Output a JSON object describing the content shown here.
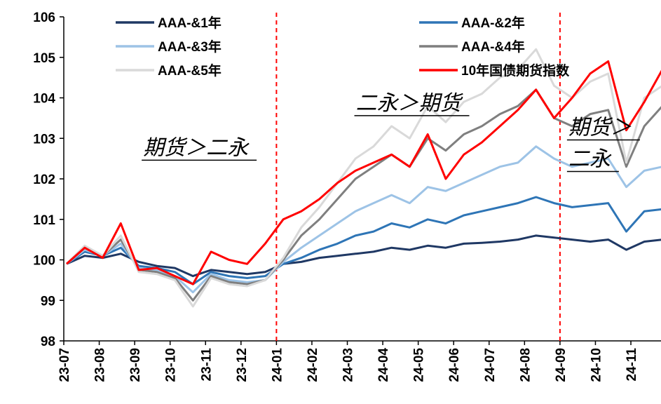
{
  "chart_data": {
    "type": "line",
    "title": "",
    "xlabel": "",
    "ylabel": "",
    "ylim": [
      98,
      106
    ],
    "yticks": [
      98,
      99,
      100,
      101,
      102,
      103,
      104,
      105,
      106
    ],
    "x_tick_labels": [
      "23-07",
      "23-08",
      "23-09",
      "23-10",
      "23-11",
      "23-12",
      "24-01",
      "24-02",
      "24-03",
      "24-04",
      "24-05",
      "24-06",
      "24-07",
      "24-08",
      "24-09",
      "24-10",
      "24-11"
    ],
    "grid": false,
    "legend_placement": "top",
    "x": [
      "23-07",
      "23-07b",
      "23-08",
      "23-08b",
      "23-09",
      "23-09b",
      "23-10",
      "23-10b",
      "23-11",
      "23-11b",
      "23-12",
      "23-12b",
      "24-01",
      "24-01b",
      "24-02",
      "24-02b",
      "24-03",
      "24-03b",
      "24-04",
      "24-04b",
      "24-05",
      "24-05b",
      "24-06",
      "24-06b",
      "24-07",
      "24-07b",
      "24-08",
      "24-08b",
      "24-09",
      "24-09b",
      "24-10",
      "24-10b",
      "24-11",
      "24-11b"
    ],
    "series": [
      {
        "name": "AAA-&1年",
        "color": "#1f3864",
        "values": [
          99.9,
          100.1,
          100.05,
          100.15,
          99.95,
          99.85,
          99.8,
          99.6,
          99.75,
          99.7,
          99.65,
          99.7,
          99.9,
          99.95,
          100.05,
          100.1,
          100.15,
          100.2,
          100.3,
          100.25,
          100.35,
          100.3,
          100.4,
          100.42,
          100.45,
          100.5,
          100.6,
          100.55,
          100.5,
          100.45,
          100.5,
          100.25,
          100.45,
          100.5
        ]
      },
      {
        "name": "AAA-&2年",
        "color": "#2e75b6",
        "values": [
          99.9,
          100.2,
          100.1,
          100.3,
          99.85,
          99.8,
          99.7,
          99.4,
          99.7,
          99.6,
          99.55,
          99.6,
          99.9,
          100.05,
          100.25,
          100.4,
          100.6,
          100.7,
          100.9,
          100.8,
          101.0,
          100.9,
          101.1,
          101.2,
          101.3,
          101.4,
          101.55,
          101.4,
          101.3,
          101.35,
          101.4,
          100.7,
          101.2,
          101.25
        ]
      },
      {
        "name": "AAA-&3年",
        "color": "#9dc3e6",
        "values": [
          99.9,
          100.25,
          100.1,
          100.4,
          99.8,
          99.75,
          99.6,
          99.2,
          99.65,
          99.5,
          99.45,
          99.5,
          99.95,
          100.3,
          100.6,
          100.9,
          101.2,
          101.4,
          101.6,
          101.4,
          101.8,
          101.7,
          101.9,
          102.1,
          102.3,
          102.4,
          102.8,
          102.5,
          102.3,
          102.4,
          102.5,
          101.8,
          102.2,
          102.3
        ]
      },
      {
        "name": "AAA-&4年",
        "color": "#7f7f7f",
        "values": [
          99.9,
          100.3,
          100.1,
          100.5,
          99.75,
          99.7,
          99.55,
          99.0,
          99.6,
          99.45,
          99.4,
          99.5,
          100.0,
          100.6,
          101.0,
          101.5,
          102.0,
          102.3,
          102.6,
          102.3,
          103.0,
          102.7,
          103.1,
          103.3,
          103.6,
          103.8,
          104.2,
          103.5,
          103.3,
          103.6,
          103.7,
          102.3,
          103.3,
          103.8
        ]
      },
      {
        "name": "AAA-&5年",
        "color": "#d9d9d9",
        "values": [
          99.9,
          100.35,
          100.1,
          100.6,
          99.7,
          99.65,
          99.5,
          98.85,
          99.55,
          99.4,
          99.35,
          99.5,
          100.05,
          100.8,
          101.3,
          101.9,
          102.5,
          102.8,
          103.3,
          103.0,
          103.8,
          103.4,
          103.9,
          104.1,
          104.5,
          104.7,
          105.2,
          104.3,
          104.0,
          104.4,
          104.6,
          102.4,
          104.0,
          104.3
        ]
      },
      {
        "name": "10年国债期货指数",
        "color": "#ff0000",
        "values": [
          99.9,
          100.3,
          100.05,
          100.9,
          99.75,
          99.8,
          99.6,
          99.4,
          100.2,
          100.0,
          99.9,
          100.4,
          101.0,
          101.2,
          101.5,
          101.9,
          102.2,
          102.4,
          102.6,
          102.3,
          103.1,
          102.0,
          102.6,
          102.9,
          103.3,
          103.7,
          104.2,
          103.5,
          104.0,
          104.6,
          104.9,
          103.2,
          103.9,
          104.7
        ]
      }
    ],
    "annotations": [
      {
        "text": "期货＞二永",
        "x_between": [
          "23-09",
          "23-12"
        ],
        "y": 102.6
      },
      {
        "text": "二永＞期货",
        "x_between": [
          "24-03",
          "24-07"
        ],
        "y": 103.7
      },
      {
        "text": "期货＞二永",
        "x_between": [
          "24-09",
          "24-11"
        ],
        "y": 103.1,
        "wrap": 3
      }
    ],
    "vlines": [
      "24-01",
      "24-09"
    ]
  }
}
